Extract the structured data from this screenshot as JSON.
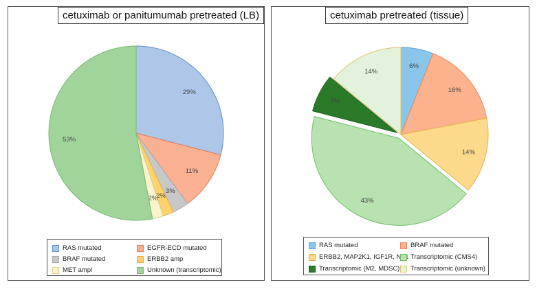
{
  "chart_data": [
    {
      "type": "pie",
      "title": "cetuximab or panitumumab pretreated (LB)",
      "categories": [
        "RAS mutated",
        "EGFR-ECD mutated",
        "BRAF mutated",
        "ERBB2 amp",
        "MET ampl",
        "Unknown (transcriptomic)"
      ],
      "values": [
        29,
        11,
        3,
        2,
        2,
        53
      ],
      "labels": [
        "29%",
        "11%",
        "3%",
        "2%",
        "2%",
        "53%"
      ],
      "colors": [
        "#aec7e8",
        "#f9b093",
        "#c8c8c8",
        "#fdd36b",
        "#fbf3cc",
        "#a0d49a"
      ],
      "stroke_colors": [
        "#5b8fd0",
        "#e57d55",
        "#a8a8a8",
        "#e8b24a",
        "#d8cf9a",
        "#79b872"
      ],
      "legend": [
        "RAS mutated",
        "EGFR-ECD mutated",
        "BRAF mutated",
        "ERBB2 amp",
        "MET ampl",
        "Unknown (transcriptomic)"
      ],
      "legend_position": "bottom"
    },
    {
      "type": "pie",
      "title": "cetuximab pretreated (tissue)",
      "categories": [
        "RAS mutated",
        "BRAF mutated",
        "ERBB2, MAP2K1, IGF1R, NF1",
        "Transcriptomic (CMS4)",
        "Transcriptomic (M2, MDSC)",
        "Transcriptomic (unknown)"
      ],
      "values": [
        6,
        16,
        14,
        43,
        7,
        14
      ],
      "labels": [
        "6%",
        "16%",
        "14%",
        "43%",
        "7%",
        "14%"
      ],
      "colors": [
        "#8ac5ea",
        "#fbb28d",
        "#fdd98c",
        "#b8e2b0",
        "#2a7a2a",
        "#e2f2dc"
      ],
      "stroke_colors": [
        "#5aa6d8",
        "#e88a5c",
        "#e8b24a",
        "#6fbf66",
        "#1d5e1d",
        "#e0c36a"
      ],
      "legend": [
        "RAS mutated",
        "BRAF mutated",
        "ERBB2, MAP2K1, IGF1R, NF1",
        "Transcriptomic (CMS4)",
        "Transcriptomic (M2, MDSC)",
        "Transcriptomic (unknown)"
      ],
      "legend_position": "bottom"
    }
  ]
}
